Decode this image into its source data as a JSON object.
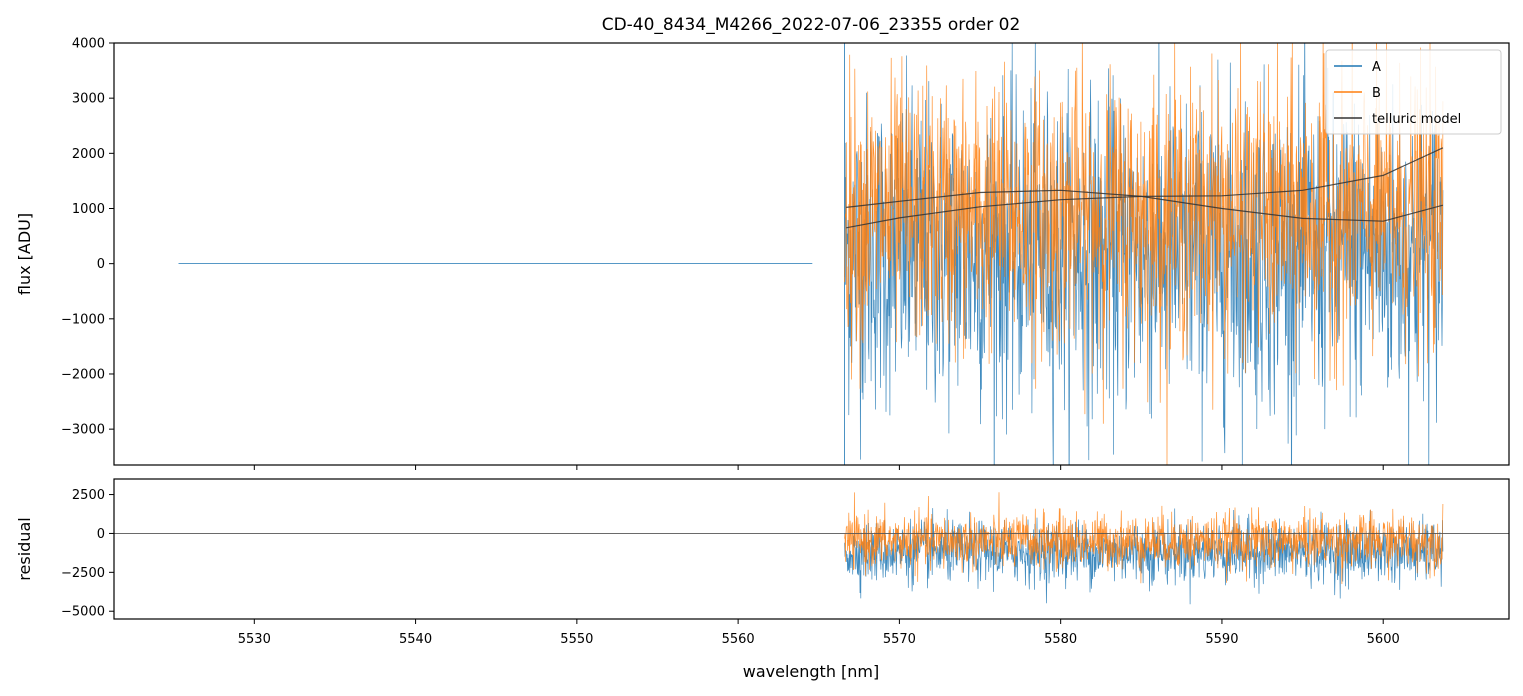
{
  "chart_data": [
    {
      "type": "line",
      "title": "CD-40_8434_M4266_2022-07-06_23355  order 02",
      "xlabel": "",
      "ylabel": "flux [ADU]",
      "xlim": [
        5521.3,
        5607.8
      ],
      "ylim": [
        -3650,
        4000
      ],
      "yticks": [
        "−3000",
        "−2000",
        "−1000",
        "0",
        "1000",
        "2000",
        "3000",
        "4000"
      ],
      "ytick_values": [
        -3000,
        -2000,
        -1000,
        0,
        1000,
        2000,
        3000,
        4000
      ],
      "xticks_values": [
        5530,
        5540,
        5550,
        5560,
        5570,
        5580,
        5590,
        5600
      ],
      "grid": false,
      "legend_position": "top-right",
      "legend": [
        "A",
        "B",
        "telluric model"
      ],
      "series": [
        {
          "name": "A",
          "color": "#1f77b4",
          "segments": [
            {
              "x_start": 5525.3,
              "x_end": 5564.6,
              "value": 0
            },
            {
              "x_start": 5566.6,
              "x_end": 5603.7,
              "mean": 200,
              "spread": 2600,
              "description_only": false
            }
          ]
        },
        {
          "name": "B",
          "color": "#ff7f0e",
          "segments": [
            {
              "x_start": 5566.6,
              "x_end": 5603.7,
              "mean": 900,
              "spread": 2200
            }
          ]
        },
        {
          "name": "telluric model",
          "color": "#333333",
          "curves": [
            {
              "x": [
                5566.7,
                5570,
                5575,
                5580,
                5585,
                5590,
                5595,
                5600,
                5603.7
              ],
              "y": [
                650,
                830,
                1030,
                1160,
                1220,
                1230,
                1330,
                1600,
                2100
              ]
            },
            {
              "x": [
                5566.7,
                5570,
                5575,
                5580,
                5585,
                5590,
                5595,
                5600,
                5603.7
              ],
              "y": [
                1020,
                1130,
                1290,
                1330,
                1220,
                1000,
                820,
                770,
                1060
              ]
            }
          ]
        }
      ]
    },
    {
      "type": "line",
      "xlabel": "wavelength [nm]",
      "ylabel": "residual",
      "xlim": [
        5521.3,
        5607.8
      ],
      "ylim": [
        -5500,
        3500
      ],
      "yticks": [
        "−5000",
        "−2500",
        "0",
        "2500"
      ],
      "ytick_values": [
        -5000,
        -2500,
        0,
        2500
      ],
      "xticks": [
        "5530",
        "5540",
        "5550",
        "5560",
        "5570",
        "5580",
        "5590",
        "5600"
      ],
      "xticks_values": [
        5530,
        5540,
        5550,
        5560,
        5570,
        5580,
        5590,
        5600
      ],
      "grid": false,
      "reference_line": 0,
      "series": [
        {
          "name": "A",
          "color": "#1f77b4",
          "x_start": 5566.6,
          "x_end": 5603.7,
          "mean": -1200,
          "spread": 1800
        },
        {
          "name": "B",
          "color": "#ff7f0e",
          "x_start": 5566.6,
          "x_end": 5603.7,
          "mean": -500,
          "spread": 1600
        }
      ]
    }
  ]
}
